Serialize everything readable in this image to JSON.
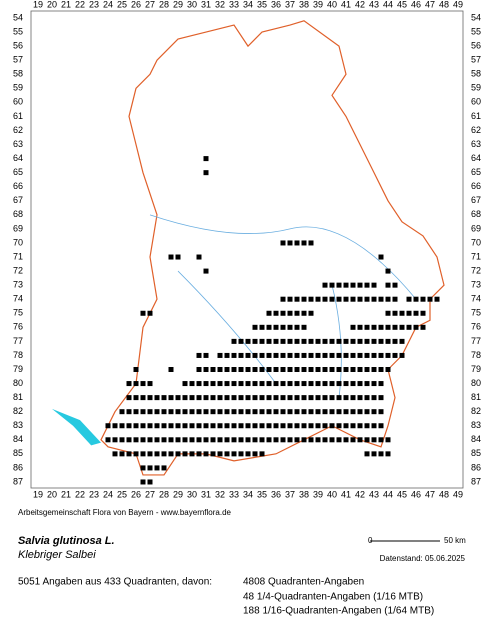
{
  "map": {
    "x_labels": [
      19,
      20,
      21,
      22,
      23,
      24,
      25,
      26,
      27,
      28,
      29,
      30,
      31,
      32,
      33,
      34,
      35,
      36,
      37,
      38,
      39,
      40,
      41,
      42,
      43,
      44,
      45,
      46,
      47,
      48,
      49
    ],
    "y_labels": [
      54,
      55,
      56,
      57,
      58,
      59,
      60,
      61,
      62,
      63,
      64,
      65,
      66,
      67,
      68,
      69,
      70,
      71,
      72,
      73,
      74,
      75,
      76,
      77,
      78,
      79,
      80,
      81,
      82,
      83,
      84,
      85,
      86,
      87
    ],
    "records": [
      {
        "row": 64,
        "cols": [
          [
            31,
            31
          ]
        ]
      },
      {
        "row": 65,
        "cols": [
          [
            31,
            31
          ]
        ]
      },
      {
        "row": 70,
        "cols": [
          [
            36.5,
            38.5
          ]
        ]
      },
      {
        "row": 71,
        "cols": [
          [
            28.5,
            29
          ],
          [
            30.5,
            30.5
          ],
          [
            43.5,
            43.5
          ]
        ]
      },
      {
        "row": 72,
        "cols": [
          [
            31,
            31
          ],
          [
            44,
            44
          ]
        ]
      },
      {
        "row": 73,
        "cols": [
          [
            39.5,
            43
          ],
          [
            44,
            44.5
          ]
        ]
      },
      {
        "row": 74,
        "cols": [
          [
            36.5,
            44.5
          ],
          [
            45.5,
            47.5
          ]
        ]
      },
      {
        "row": 75,
        "cols": [
          [
            26.5,
            27
          ],
          [
            35.5,
            38.5
          ],
          [
            44,
            46.5
          ]
        ]
      },
      {
        "row": 76,
        "cols": [
          [
            34.5,
            38
          ],
          [
            41.5,
            46.5
          ]
        ]
      },
      {
        "row": 77,
        "cols": [
          [
            33,
            45
          ]
        ]
      },
      {
        "row": 78,
        "cols": [
          [
            30.5,
            31
          ],
          [
            32,
            45
          ]
        ]
      },
      {
        "row": 79,
        "cols": [
          [
            26,
            26
          ],
          [
            28.5,
            28.5
          ],
          [
            30.5,
            44
          ]
        ]
      },
      {
        "row": 80,
        "cols": [
          [
            25.5,
            27
          ],
          [
            29.5,
            43.5
          ]
        ]
      },
      {
        "row": 81,
        "cols": [
          [
            25.5,
            43.5
          ]
        ]
      },
      {
        "row": 82,
        "cols": [
          [
            25,
            43.5
          ]
        ]
      },
      {
        "row": 83,
        "cols": [
          [
            24,
            43.5
          ]
        ]
      },
      {
        "row": 84,
        "cols": [
          [
            24,
            44
          ]
        ]
      },
      {
        "row": 85,
        "cols": [
          [
            24.5,
            35
          ],
          [
            42.5,
            44
          ]
        ]
      },
      {
        "row": 86,
        "cols": [
          [
            26.5,
            28
          ]
        ]
      },
      {
        "row": 87,
        "cols": [
          [
            26.5,
            27
          ]
        ]
      }
    ]
  },
  "footer": {
    "credit": "Arbeitsgemeinschaft Flora von Bayern - www.bayernflora.de",
    "scale_start": "0",
    "scale_end": "50 km",
    "date": "Datenstand: 05.06.2025"
  },
  "species": {
    "name": "Salvia glutinosa L.",
    "common_name": "Klebriger Salbei"
  },
  "stats": {
    "summary": "5051 Angaben aus 433 Quadranten, davon:",
    "lines": [
      "4808 Quadranten-Angaben",
      "48 1/4-Quadranten-Angaben (1/16 MTB)",
      "188 1/16-Quadranten-Angaben (1/64 MTB)"
    ]
  }
}
